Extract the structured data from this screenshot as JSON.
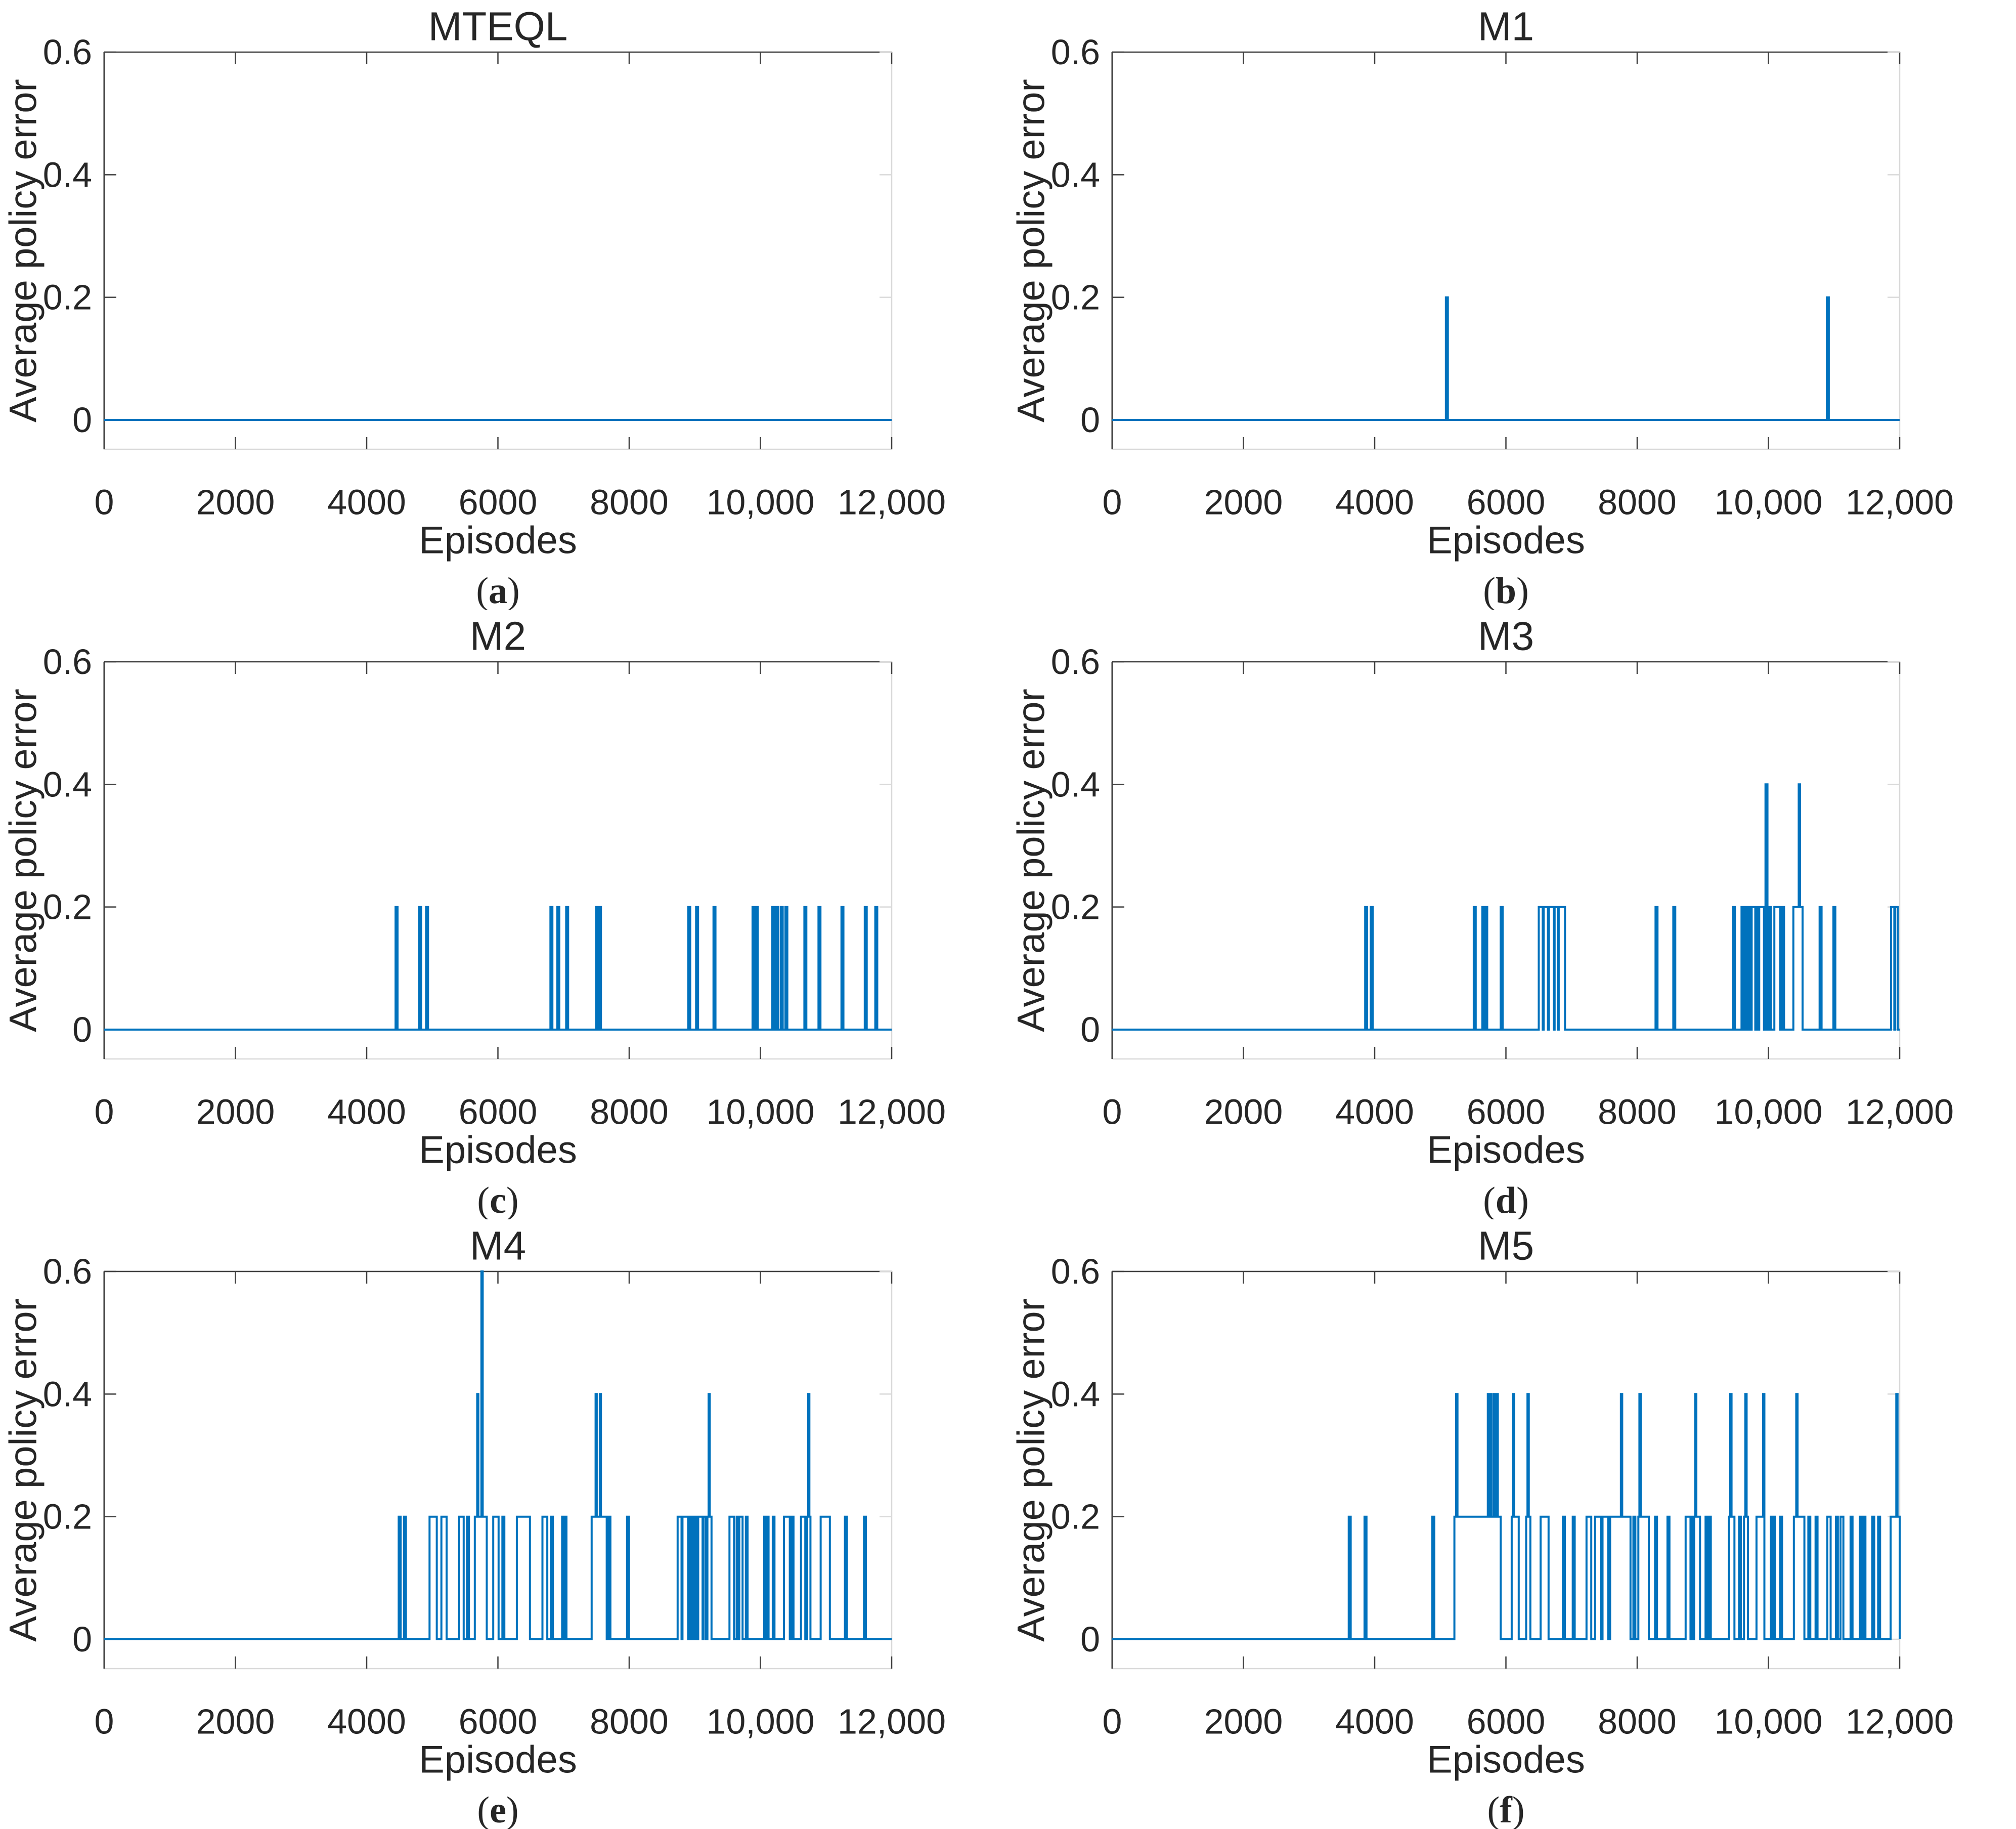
{
  "figure": {
    "background": "#ffffff",
    "line_color": "#0072BD",
    "axis_color": "#262626",
    "box_light_color": "#d9d9d9",
    "xlabel": "Episodes",
    "ylabel": "Average policy error",
    "xlim": [
      0,
      12000
    ],
    "ylim": [
      -0.048,
      0.6
    ],
    "x_ticks": [
      0,
      2000,
      4000,
      6000,
      8000,
      10000,
      12000
    ],
    "x_tick_labels": [
      "0",
      "2000",
      "4000",
      "6000",
      "8000",
      "10,000",
      "12,000"
    ],
    "y_ticks": [
      0,
      0.2,
      0.4,
      0.6
    ],
    "y_tick_labels": [
      "0",
      "0.2",
      "0.4",
      "0.6"
    ],
    "grid": false,
    "legend": "none",
    "segment_format": "[start_episode, end_episode, average_policy_error]; value is 0 everywhere else"
  },
  "chart_data": [
    {
      "id": "a",
      "type": "line",
      "title": "MTEQL",
      "caption": "(a)",
      "caption_letter": "a",
      "xlabel": "Episodes",
      "ylabel": "Average policy error",
      "segments": []
    },
    {
      "id": "b",
      "type": "line",
      "title": "M1",
      "caption": "(b)",
      "caption_letter": "b",
      "xlabel": "Episodes",
      "ylabel": "Average policy error",
      "segments": [
        [
          5085,
          5115,
          0.2
        ],
        [
          10890,
          10920,
          0.2
        ]
      ]
    },
    {
      "id": "c",
      "type": "line",
      "title": "M2",
      "caption": "(c)",
      "caption_letter": "c",
      "xlabel": "Episodes",
      "ylabel": "Average policy error",
      "segments": [
        [
          4440,
          4470,
          0.2
        ],
        [
          4800,
          4830,
          0.2
        ],
        [
          4905,
          4935,
          0.2
        ],
        [
          6800,
          6830,
          0.2
        ],
        [
          6905,
          6935,
          0.2
        ],
        [
          7040,
          7070,
          0.2
        ],
        [
          7495,
          7525,
          0.2
        ],
        [
          7540,
          7570,
          0.2
        ],
        [
          8900,
          8930,
          0.2
        ],
        [
          9020,
          9050,
          0.2
        ],
        [
          9285,
          9315,
          0.2
        ],
        [
          9880,
          9910,
          0.2
        ],
        [
          9930,
          9960,
          0.2
        ],
        [
          10180,
          10210,
          0.2
        ],
        [
          10240,
          10270,
          0.2
        ],
        [
          10310,
          10340,
          0.2
        ],
        [
          10380,
          10410,
          0.2
        ],
        [
          10670,
          10700,
          0.2
        ],
        [
          10885,
          10915,
          0.2
        ],
        [
          11235,
          11265,
          0.2
        ],
        [
          11590,
          11620,
          0.2
        ],
        [
          11750,
          11780,
          0.2
        ]
      ]
    },
    {
      "id": "d",
      "type": "line",
      "title": "M3",
      "caption": "(d)",
      "caption_letter": "d",
      "xlabel": "Episodes",
      "ylabel": "Average policy error",
      "segments": [
        [
          3855,
          3885,
          0.2
        ],
        [
          3940,
          3970,
          0.2
        ],
        [
          5510,
          5540,
          0.2
        ],
        [
          5640,
          5668,
          0.2
        ],
        [
          5685,
          5715,
          0.2
        ],
        [
          5920,
          5950,
          0.2
        ],
        [
          6500,
          6560,
          0.2
        ],
        [
          6575,
          6640,
          0.2
        ],
        [
          6655,
          6728,
          0.2
        ],
        [
          6742,
          6790,
          0.2
        ],
        [
          6805,
          6900,
          0.2
        ],
        [
          8280,
          8310,
          0.2
        ],
        [
          8550,
          8580,
          0.2
        ],
        [
          9460,
          9490,
          0.2
        ],
        [
          9590,
          9618,
          0.2
        ],
        [
          9648,
          9678,
          0.2
        ],
        [
          9702,
          9728,
          0.2
        ],
        [
          9745,
          9800,
          0.2
        ],
        [
          9822,
          9848,
          0.2
        ],
        [
          9860,
          9932,
          0.2
        ],
        [
          9955,
          9985,
          0.4
        ],
        [
          10008,
          10038,
          0.2
        ],
        [
          10090,
          10180,
          0.2
        ],
        [
          10208,
          10238,
          0.2
        ],
        [
          10380,
          10462,
          0.2
        ],
        [
          10462,
          10482,
          0.4
        ],
        [
          10482,
          10520,
          0.2
        ],
        [
          10780,
          10810,
          0.2
        ],
        [
          10990,
          11020,
          0.2
        ],
        [
          11868,
          11918,
          0.2
        ],
        [
          11932,
          11972,
          0.2
        ]
      ]
    },
    {
      "id": "e",
      "type": "line",
      "title": "M4",
      "caption": "(e)",
      "caption_letter": "e",
      "xlabel": "Episodes",
      "ylabel": "Average policy error",
      "segments": [
        [
          4488,
          4518,
          0.2
        ],
        [
          4568,
          4598,
          0.2
        ],
        [
          4958,
          5068,
          0.2
        ],
        [
          5138,
          5218,
          0.2
        ],
        [
          5408,
          5478,
          0.2
        ],
        [
          5528,
          5558,
          0.2
        ],
        [
          5648,
          5684,
          0.2
        ],
        [
          5684,
          5702,
          0.4
        ],
        [
          5702,
          5748,
          0.2
        ],
        [
          5748,
          5768,
          0.6
        ],
        [
          5768,
          5830,
          0.2
        ],
        [
          5928,
          6010,
          0.2
        ],
        [
          6068,
          6098,
          0.2
        ],
        [
          6288,
          6488,
          0.2
        ],
        [
          6678,
          6752,
          0.2
        ],
        [
          6808,
          6838,
          0.2
        ],
        [
          6978,
          7004,
          0.2
        ],
        [
          7018,
          7044,
          0.2
        ],
        [
          7428,
          7488,
          0.2
        ],
        [
          7488,
          7506,
          0.4
        ],
        [
          7506,
          7552,
          0.2
        ],
        [
          7552,
          7570,
          0.4
        ],
        [
          7570,
          7658,
          0.2
        ],
        [
          7688,
          7714,
          0.2
        ],
        [
          7968,
          7998,
          0.2
        ],
        [
          8738,
          8798,
          0.2
        ],
        [
          8812,
          8898,
          0.2
        ],
        [
          8922,
          8948,
          0.2
        ],
        [
          8962,
          8988,
          0.2
        ],
        [
          9002,
          9028,
          0.2
        ],
        [
          9052,
          9118,
          0.2
        ],
        [
          9132,
          9168,
          0.2
        ],
        [
          9192,
          9210,
          0.2
        ],
        [
          9210,
          9228,
          0.4
        ],
        [
          9228,
          9255,
          0.2
        ],
        [
          9528,
          9598,
          0.2
        ],
        [
          9638,
          9664,
          0.2
        ],
        [
          9678,
          9728,
          0.2
        ],
        [
          9778,
          9804,
          0.2
        ],
        [
          10058,
          10084,
          0.2
        ],
        [
          10098,
          10124,
          0.2
        ],
        [
          10188,
          10214,
          0.2
        ],
        [
          10358,
          10448,
          0.2
        ],
        [
          10478,
          10504,
          0.2
        ],
        [
          10618,
          10684,
          0.2
        ],
        [
          10712,
          10728,
          0.2
        ],
        [
          10728,
          10746,
          0.4
        ],
        [
          10746,
          10762,
          0.2
        ],
        [
          10918,
          11058,
          0.2
        ],
        [
          11288,
          11318,
          0.2
        ],
        [
          11578,
          11608,
          0.2
        ]
      ]
    },
    {
      "id": "f",
      "type": "line",
      "title": "M5",
      "caption": "(f)",
      "caption_letter": "f",
      "xlabel": "Episodes",
      "ylabel": "Average policy error",
      "segments": [
        [
          3605,
          3635,
          0.2
        ],
        [
          3845,
          3875,
          0.2
        ],
        [
          4878,
          4908,
          0.2
        ],
        [
          5215,
          5240,
          0.2
        ],
        [
          5240,
          5262,
          0.4
        ],
        [
          5262,
          5724,
          0.2
        ],
        [
          5724,
          5744,
          0.4
        ],
        [
          5744,
          5764,
          0.2
        ],
        [
          5764,
          5784,
          0.4
        ],
        [
          5784,
          5818,
          0.2
        ],
        [
          5818,
          5838,
          0.4
        ],
        [
          5838,
          5857,
          0.2
        ],
        [
          5857,
          5877,
          0.4
        ],
        [
          5877,
          5920,
          0.2
        ],
        [
          6088,
          6104,
          0.2
        ],
        [
          6104,
          6124,
          0.4
        ],
        [
          6124,
          6195,
          0.2
        ],
        [
          6308,
          6328,
          0.2
        ],
        [
          6328,
          6348,
          0.4
        ],
        [
          6348,
          6372,
          0.2
        ],
        [
          6528,
          6650,
          0.2
        ],
        [
          6868,
          6898,
          0.2
        ],
        [
          7018,
          7048,
          0.2
        ],
        [
          7228,
          7300,
          0.2
        ],
        [
          7358,
          7448,
          0.2
        ],
        [
          7472,
          7558,
          0.2
        ],
        [
          7588,
          7752,
          0.2
        ],
        [
          7752,
          7772,
          0.4
        ],
        [
          7772,
          7898,
          0.2
        ],
        [
          7942,
          7972,
          0.2
        ],
        [
          8018,
          8034,
          0.2
        ],
        [
          8034,
          8054,
          0.4
        ],
        [
          8054,
          8178,
          0.2
        ],
        [
          8272,
          8302,
          0.2
        ],
        [
          8462,
          8492,
          0.2
        ],
        [
          8738,
          8812,
          0.2
        ],
        [
          8828,
          8852,
          0.2
        ],
        [
          8868,
          8884,
          0.2
        ],
        [
          8884,
          8902,
          0.4
        ],
        [
          8902,
          8958,
          0.2
        ],
        [
          9042,
          9072,
          0.2
        ],
        [
          9092,
          9122,
          0.2
        ],
        [
          9398,
          9418,
          0.2
        ],
        [
          9418,
          9438,
          0.4
        ],
        [
          9438,
          9482,
          0.2
        ],
        [
          9552,
          9582,
          0.2
        ],
        [
          9628,
          9648,
          0.2
        ],
        [
          9648,
          9668,
          0.4
        ],
        [
          9668,
          9688,
          0.2
        ],
        [
          9818,
          9918,
          0.2
        ],
        [
          9918,
          9938,
          0.4
        ],
        [
          10038,
          10062,
          0.2
        ],
        [
          10078,
          10102,
          0.2
        ],
        [
          10178,
          10208,
          0.2
        ],
        [
          10388,
          10424,
          0.2
        ],
        [
          10424,
          10444,
          0.4
        ],
        [
          10444,
          10548,
          0.2
        ],
        [
          10608,
          10638,
          0.2
        ],
        [
          10718,
          10748,
          0.2
        ],
        [
          10898,
          10948,
          0.2
        ],
        [
          11028,
          11058,
          0.2
        ],
        [
          11098,
          11142,
          0.2
        ],
        [
          11252,
          11282,
          0.2
        ],
        [
          11392,
          11422,
          0.2
        ],
        [
          11448,
          11478,
          0.2
        ],
        [
          11582,
          11612,
          0.2
        ],
        [
          11672,
          11702,
          0.2
        ],
        [
          11862,
          11948,
          0.2
        ],
        [
          11948,
          11968,
          0.4
        ],
        [
          11968,
          12000,
          0.2
        ]
      ]
    }
  ]
}
